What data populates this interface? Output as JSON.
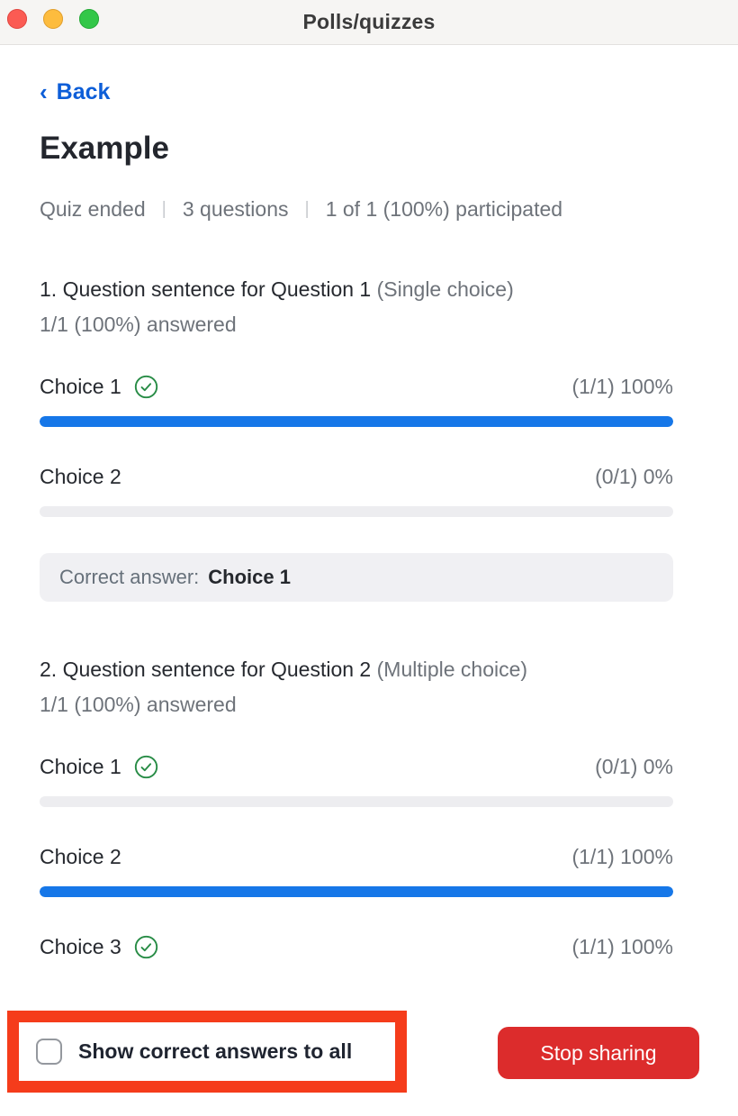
{
  "window": {
    "title": "Polls/quizzes",
    "traffic_lights": [
      "close",
      "minimize",
      "zoom"
    ]
  },
  "nav": {
    "back_chevron": "‹",
    "back_label": "Back"
  },
  "quiz": {
    "title": "Example",
    "status": "Quiz ended",
    "separator": "|",
    "questions_count": "3 questions",
    "participation": "1 of 1 (100%) participated",
    "questions": [
      {
        "heading": "1. Question sentence for Question 1",
        "type": "(Single choice)",
        "answered": "1/1 (100%) answered",
        "choices": [
          {
            "label": "Choice 1",
            "correct": true,
            "stat": "(1/1) 100%",
            "percent": 100
          },
          {
            "label": "Choice 2",
            "correct": false,
            "stat": "(0/1) 0%",
            "percent": 0
          }
        ],
        "correct_answer_label": "Correct answer:",
        "correct_answer_value": "Choice 1"
      },
      {
        "heading": "2.  Question sentence for Question 2",
        "type": "(Multiple choice)",
        "answered": "1/1 (100%) answered",
        "choices": [
          {
            "label": "Choice 1",
            "correct": true,
            "stat": "(0/1) 0%",
            "percent": 0
          },
          {
            "label": "Choice 2",
            "correct": false,
            "stat": "(1/1) 100%",
            "percent": 100
          },
          {
            "label": "Choice 3",
            "correct": true,
            "stat": "(1/1) 100%",
            "percent": 100
          }
        ]
      }
    ]
  },
  "footer": {
    "checkbox_label": "Show correct answers to all",
    "checkbox_checked": false,
    "stop_button_label": "Stop sharing"
  },
  "colors": {
    "accent_blue": "#1677e8",
    "link_blue": "#0d5ed8",
    "correct_green": "#288c46",
    "stop_red": "#dc2c2c",
    "annotation_red": "#f53c1b"
  }
}
